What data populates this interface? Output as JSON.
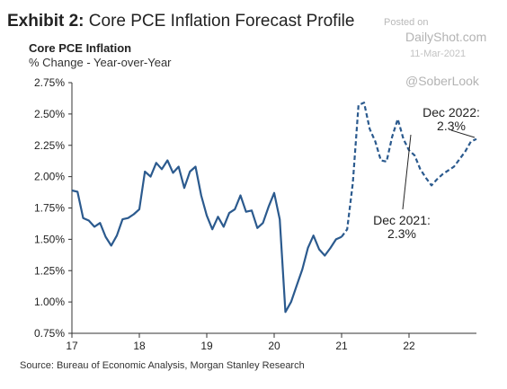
{
  "header": {
    "exhibit_label": "Exhibit 2:",
    "exhibit_title": "Core PCE Inflation Forecast Profile",
    "series_title": "Core PCE Inflation",
    "units": "% Change - Year-over-Year"
  },
  "watermark": {
    "posted": "Posted on",
    "site": "DailyShot.com",
    "date": "11-Mar-2021",
    "handle": "@SoberLook"
  },
  "footer": {
    "source": "Source: Bureau of Economic Analysis, Morgan Stanley Research"
  },
  "colors": {
    "line": "#2b5a8e",
    "axis": "#333333"
  },
  "chart_data": {
    "type": "line",
    "title": "Core PCE Inflation",
    "ylabel": "% Change - Year-over-Year",
    "xlim": [
      2017,
      2023
    ],
    "ylim": [
      0.75,
      2.75
    ],
    "yticks": [
      {
        "value": 0.75,
        "label": "0.75%"
      },
      {
        "value": 1.0,
        "label": "1.00%"
      },
      {
        "value": 1.25,
        "label": "1.25%"
      },
      {
        "value": 1.5,
        "label": "1.50%"
      },
      {
        "value": 1.75,
        "label": "1.75%"
      },
      {
        "value": 2.0,
        "label": "2.00%"
      },
      {
        "value": 2.25,
        "label": "2.25%"
      },
      {
        "value": 2.5,
        "label": "2.50%"
      },
      {
        "value": 2.75,
        "label": "2.75%"
      }
    ],
    "xticks": [
      {
        "value": 2017,
        "label": "17"
      },
      {
        "value": 2018,
        "label": "18"
      },
      {
        "value": 2019,
        "label": "19"
      },
      {
        "value": 2020,
        "label": "20"
      },
      {
        "value": 2021,
        "label": "21"
      },
      {
        "value": 2022,
        "label": "22"
      }
    ],
    "grid": false,
    "series": [
      {
        "style": "solid",
        "x": [
          2017.0,
          2017.083,
          2017.167,
          2017.25,
          2017.333,
          2017.417,
          2017.5,
          2017.583,
          2017.667,
          2017.75,
          2017.833,
          2017.917,
          2018.0,
          2018.083,
          2018.167,
          2018.25,
          2018.333,
          2018.417,
          2018.5,
          2018.583,
          2018.667,
          2018.75,
          2018.833,
          2018.917,
          2019.0,
          2019.083,
          2019.167,
          2019.25,
          2019.333,
          2019.417,
          2019.5,
          2019.583,
          2019.667,
          2019.75,
          2019.833,
          2019.917,
          2020.0,
          2020.083,
          2020.167,
          2020.25,
          2020.333,
          2020.417,
          2020.5,
          2020.583,
          2020.667,
          2020.75,
          2020.833,
          2020.917,
          2021.0
        ],
        "y": [
          1.89,
          1.88,
          1.67,
          1.65,
          1.6,
          1.63,
          1.52,
          1.45,
          1.53,
          1.66,
          1.67,
          1.7,
          1.74,
          2.04,
          2.0,
          2.11,
          2.06,
          2.13,
          2.03,
          2.08,
          1.91,
          2.04,
          2.08,
          1.85,
          1.69,
          1.58,
          1.68,
          1.6,
          1.71,
          1.74,
          1.85,
          1.72,
          1.73,
          1.59,
          1.63,
          1.76,
          1.87,
          1.66,
          0.92,
          1.0,
          1.13,
          1.26,
          1.43,
          1.53,
          1.42,
          1.37,
          1.43,
          1.5,
          1.52
        ]
      },
      {
        "style": "dashed",
        "x": [
          2021.0,
          2021.083,
          2021.167,
          2021.25,
          2021.333,
          2021.417,
          2021.5,
          2021.583,
          2021.667,
          2021.75,
          2021.833,
          2021.917,
          2022.0,
          2022.083,
          2022.167,
          2022.25,
          2022.333,
          2022.417,
          2022.5,
          2022.583,
          2022.667,
          2022.75,
          2022.833,
          2022.917,
          2023.0
        ],
        "y": [
          1.52,
          1.58,
          1.95,
          2.57,
          2.59,
          2.38,
          2.28,
          2.13,
          2.12,
          2.32,
          2.46,
          2.3,
          2.21,
          2.17,
          2.06,
          1.99,
          1.93,
          1.98,
          2.02,
          2.05,
          2.08,
          2.14,
          2.2,
          2.28,
          2.3
        ]
      }
    ],
    "annotations": [
      {
        "lines": [
          "Dec 2022:",
          "2.3%"
        ],
        "x": 2022.92,
        "y": 2.3
      },
      {
        "lines": [
          "Dec 2021:",
          "2.3%"
        ],
        "x": 2021.92,
        "y": 2.3
      }
    ]
  }
}
